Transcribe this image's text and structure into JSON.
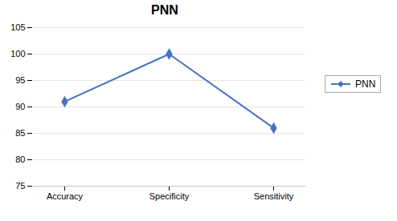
{
  "chart_data": {
    "type": "line",
    "title": "PNN",
    "categories": [
      "Accuracy",
      "Specificity",
      "Sensitivity"
    ],
    "series": [
      {
        "name": "PNN",
        "color": "#4472C4",
        "values": [
          91,
          100,
          86
        ],
        "marker": "diamond"
      }
    ],
    "ylim": [
      75,
      105
    ],
    "yticks": [
      75,
      80,
      85,
      90,
      95,
      100,
      105
    ],
    "grid": true,
    "legend": "right"
  }
}
